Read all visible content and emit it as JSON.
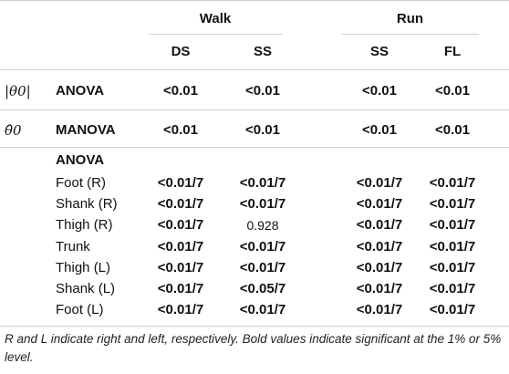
{
  "table": {
    "group_headers": [
      "Walk",
      "Run"
    ],
    "column_headers": [
      "DS",
      "SS",
      "SS",
      "FL"
    ],
    "symbol_abs_theta": "|θ0|",
    "symbol_theta_hat": "θ̂0",
    "rows": [
      {
        "label": "ANOVA",
        "values": [
          "<0.01",
          "<0.01",
          "<0.01",
          "<0.01"
        ]
      },
      {
        "label": "MANOVA",
        "values": [
          "<0.01",
          "<0.01",
          "<0.01",
          "<0.01"
        ]
      },
      {
        "label": "ANOVA",
        "values": []
      },
      {
        "label": "Foot (R)",
        "values": [
          "<0.01/7",
          "<0.01/7",
          "<0.01/7",
          "<0.01/7"
        ]
      },
      {
        "label": "Shank (R)",
        "values": [
          "<0.01/7",
          "<0.01/7",
          "<0.01/7",
          "<0.01/7"
        ]
      },
      {
        "label": "Thigh (R)",
        "values": [
          "<0.01/7",
          "0.928",
          "<0.01/7",
          "<0.01/7"
        ]
      },
      {
        "label": "Trunk",
        "values": [
          "<0.01/7",
          "<0.01/7",
          "<0.01/7",
          "<0.01/7"
        ]
      },
      {
        "label": "Thigh (L)",
        "values": [
          "<0.01/7",
          "<0.01/7",
          "<0.01/7",
          "<0.01/7"
        ]
      },
      {
        "label": "Shank (L)",
        "values": [
          "<0.01/7",
          "<0.05/7",
          "<0.01/7",
          "<0.01/7"
        ]
      },
      {
        "label": "Foot (L)",
        "values": [
          "<0.01/7",
          "<0.01/7",
          "<0.01/7",
          "<0.01/7"
        ]
      }
    ]
  },
  "footnote": "R and L indicate right and left, respectively. Bold values indicate significant at the 1% or 5% level."
}
